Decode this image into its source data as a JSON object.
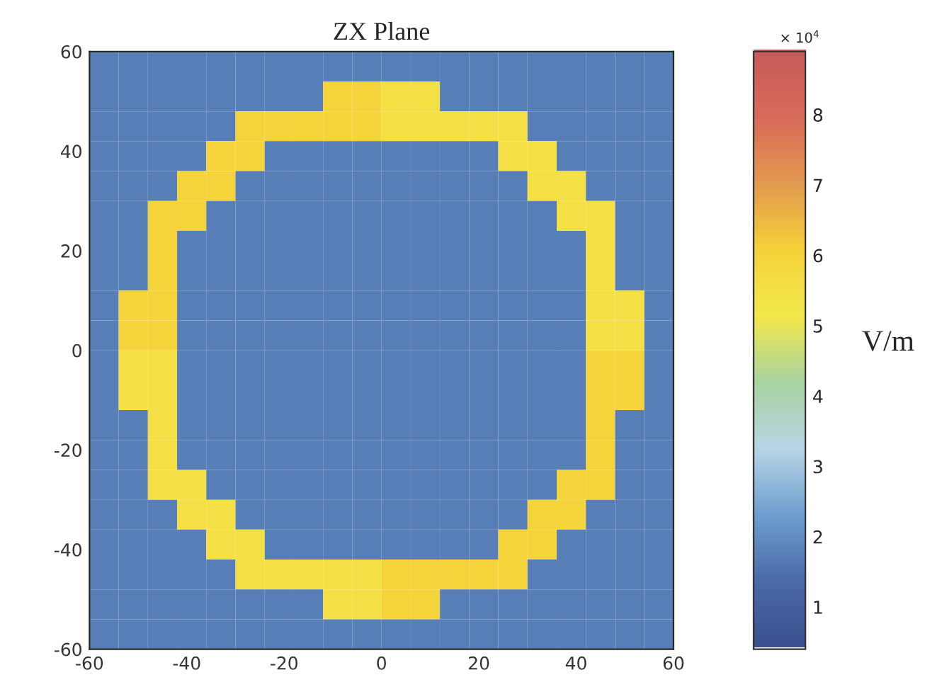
{
  "chart_data": {
    "type": "heatmap",
    "title": "ZX Plane",
    "clabel": "V/m",
    "x": [
      -57,
      -51,
      -45,
      -39,
      -33,
      -27,
      -21,
      -15,
      -9,
      -3,
      3,
      9,
      15,
      21,
      27,
      33,
      39,
      45,
      51,
      57
    ],
    "y": [
      57,
      51,
      45,
      39,
      33,
      27,
      21,
      15,
      9,
      3,
      -3,
      -9,
      -15,
      -21,
      -27,
      -33,
      -39,
      -45,
      -51,
      -57
    ],
    "xlim": [
      -60,
      60
    ],
    "ylim": [
      -60,
      60
    ],
    "xticks": [
      -60,
      -40,
      -20,
      0,
      20,
      40,
      60
    ],
    "yticks": [
      -60,
      -40,
      -20,
      0,
      20,
      40,
      60
    ],
    "clim": [
      0.4,
      8.9
    ],
    "cticks": [
      1,
      2,
      3,
      4,
      5,
      6,
      7,
      8
    ],
    "annotations": [
      "× 10$^{4}$"
    ],
    "cells": [
      [
        1.7,
        1.7,
        1.7,
        1.7,
        1.7,
        1.7,
        1.7,
        1.7,
        1.7,
        1.7,
        1.7,
        1.7,
        1.7,
        1.7,
        1.7,
        1.7,
        1.7,
        1.7,
        1.7,
        1.7
      ],
      [
        1.7,
        1.7,
        1.7,
        1.7,
        1.7,
        1.7,
        1.7,
        1.7,
        6,
        6,
        5.5,
        5.5,
        1.7,
        1.7,
        1.7,
        1.7,
        1.7,
        1.7,
        1.7,
        1.7
      ],
      [
        1.7,
        1.7,
        1.7,
        1.7,
        1.7,
        6,
        6,
        6,
        6,
        6,
        5.5,
        5.5,
        5.5,
        5.5,
        5.5,
        1.7,
        1.7,
        1.7,
        1.7,
        1.7
      ],
      [
        1.7,
        1.7,
        1.7,
        1.7,
        6,
        6,
        1.7,
        1.7,
        1.7,
        1.7,
        1.7,
        1.7,
        1.7,
        1.7,
        5.5,
        5.5,
        1.7,
        1.7,
        1.7,
        1.7
      ],
      [
        1.7,
        1.7,
        1.7,
        6,
        6,
        1.7,
        1.7,
        1.7,
        1.7,
        1.7,
        1.7,
        1.7,
        1.7,
        1.7,
        1.7,
        5.5,
        5.5,
        1.7,
        1.7,
        1.7
      ],
      [
        1.7,
        1.7,
        6,
        6,
        1.7,
        1.7,
        1.7,
        1.7,
        1.7,
        1.7,
        1.7,
        1.7,
        1.7,
        1.7,
        1.7,
        1.7,
        5.5,
        5.5,
        1.7,
        1.7
      ],
      [
        1.7,
        1.7,
        6,
        1.7,
        1.7,
        1.7,
        1.7,
        1.7,
        1.7,
        1.7,
        1.7,
        1.7,
        1.7,
        1.7,
        1.7,
        1.7,
        1.7,
        5.5,
        1.7,
        1.7
      ],
      [
        1.7,
        1.7,
        6,
        1.7,
        1.7,
        1.7,
        1.7,
        1.7,
        1.7,
        1.7,
        1.7,
        1.7,
        1.7,
        1.7,
        1.7,
        1.7,
        1.7,
        5.5,
        1.7,
        1.7
      ],
      [
        1.7,
        6,
        6,
        1.7,
        1.7,
        1.7,
        1.7,
        1.7,
        1.7,
        1.7,
        1.7,
        1.7,
        1.7,
        1.7,
        1.7,
        1.7,
        1.7,
        5.5,
        5.5,
        1.7
      ],
      [
        1.7,
        6,
        6,
        1.7,
        1.7,
        1.7,
        1.7,
        1.7,
        1.7,
        1.7,
        1.7,
        1.7,
        1.7,
        1.7,
        1.7,
        1.7,
        1.7,
        5.5,
        5.5,
        1.7
      ],
      [
        1.7,
        5.5,
        5.5,
        1.7,
        1.7,
        1.7,
        1.7,
        1.7,
        1.7,
        1.7,
        1.7,
        1.7,
        1.7,
        1.7,
        1.7,
        1.7,
        1.7,
        6,
        6,
        1.7
      ],
      [
        1.7,
        5.5,
        5.5,
        1.7,
        1.7,
        1.7,
        1.7,
        1.7,
        1.7,
        1.7,
        1.7,
        1.7,
        1.7,
        1.7,
        1.7,
        1.7,
        1.7,
        6,
        6,
        1.7
      ],
      [
        1.7,
        1.7,
        5.5,
        1.7,
        1.7,
        1.7,
        1.7,
        1.7,
        1.7,
        1.7,
        1.7,
        1.7,
        1.7,
        1.7,
        1.7,
        1.7,
        1.7,
        6,
        1.7,
        1.7
      ],
      [
        1.7,
        1.7,
        5.5,
        1.7,
        1.7,
        1.7,
        1.7,
        1.7,
        1.7,
        1.7,
        1.7,
        1.7,
        1.7,
        1.7,
        1.7,
        1.7,
        1.7,
        6,
        1.7,
        1.7
      ],
      [
        1.7,
        1.7,
        5.5,
        5.5,
        1.7,
        1.7,
        1.7,
        1.7,
        1.7,
        1.7,
        1.7,
        1.7,
        1.7,
        1.7,
        1.7,
        1.7,
        6,
        6,
        1.7,
        1.7
      ],
      [
        1.7,
        1.7,
        1.7,
        5.5,
        5.5,
        1.7,
        1.7,
        1.7,
        1.7,
        1.7,
        1.7,
        1.7,
        1.7,
        1.7,
        1.7,
        6,
        6,
        1.7,
        1.7,
        1.7
      ],
      [
        1.7,
        1.7,
        1.7,
        1.7,
        5.5,
        5.5,
        1.7,
        1.7,
        1.7,
        1.7,
        1.7,
        1.7,
        1.7,
        1.7,
        6,
        6,
        1.7,
        1.7,
        1.7,
        1.7
      ],
      [
        1.7,
        1.7,
        1.7,
        1.7,
        1.7,
        5.5,
        5.5,
        5.5,
        5.5,
        5.5,
        6,
        6,
        6,
        6,
        6,
        1.7,
        1.7,
        1.7,
        1.7,
        1.7
      ],
      [
        1.7,
        1.7,
        1.7,
        1.7,
        1.7,
        1.7,
        1.7,
        1.7,
        5.5,
        5.5,
        6,
        6,
        1.7,
        1.7,
        1.7,
        1.7,
        1.7,
        1.7,
        1.7,
        1.7
      ],
      [
        1.7,
        1.7,
        1.7,
        1.7,
        1.7,
        1.7,
        1.7,
        1.7,
        1.7,
        1.7,
        1.7,
        1.7,
        1.7,
        1.7,
        1.7,
        1.7,
        1.7,
        1.7,
        1.7,
        1.7
      ]
    ]
  }
}
